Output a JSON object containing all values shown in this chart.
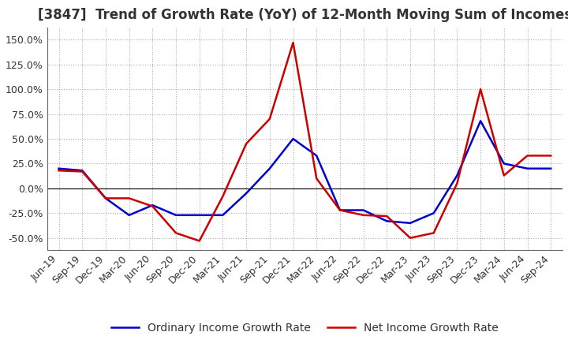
{
  "title": "[3847]  Trend of Growth Rate (YoY) of 12-Month Moving Sum of Incomes",
  "title_fontsize": 12,
  "title_color": "#333333",
  "background_color": "#ffffff",
  "plot_background": "#ffffff",
  "grid_color": "#aaaaaa",
  "ylim": [
    -62,
    162
  ],
  "yticks": [
    -50,
    -25,
    0,
    25,
    50,
    75,
    100,
    125,
    150
  ],
  "x_labels": [
    "Jun-19",
    "Sep-19",
    "Dec-19",
    "Mar-20",
    "Jun-20",
    "Sep-20",
    "Dec-20",
    "Mar-21",
    "Jun-21",
    "Sep-21",
    "Dec-21",
    "Mar-22",
    "Jun-22",
    "Sep-22",
    "Dec-22",
    "Mar-23",
    "Jun-23",
    "Sep-23",
    "Dec-23",
    "Mar-24",
    "Jun-24",
    "Sep-24"
  ],
  "ordinary_income": [
    20,
    18,
    -10,
    -27,
    -17,
    -27,
    -27,
    -27,
    -5,
    20,
    50,
    33,
    -22,
    -22,
    -33,
    -35,
    -25,
    13,
    68,
    25,
    20,
    20
  ],
  "net_income": [
    18,
    17,
    -10,
    -10,
    -18,
    -45,
    -53,
    -8,
    45,
    70,
    147,
    10,
    -22,
    -27,
    -28,
    -50,
    -45,
    5,
    100,
    13,
    33,
    33
  ],
  "ordinary_color": "#0000cc",
  "net_color": "#cc0000",
  "line_width": 1.8,
  "legend_fontsize": 10,
  "tick_fontsize": 9,
  "axis_label_color": "#333333"
}
